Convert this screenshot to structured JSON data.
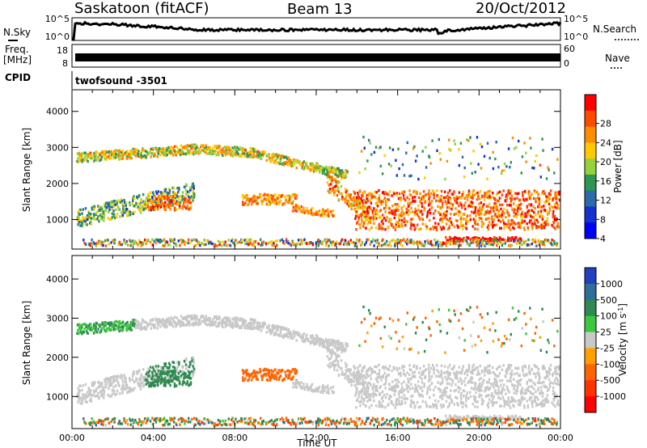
{
  "header": {
    "radar": "Saskatoon (fitACF)",
    "beam": "Beam 13",
    "date": "20/Oct/2012"
  },
  "top_panels": {
    "nsky_label": "N.Sky",
    "nsearch_label": "N.Search",
    "noise_ticks": [
      "10^5",
      "10^0"
    ],
    "freq_label_1": "Freq.",
    "freq_label_2": "[MHz]",
    "freq_ticks": [
      "18",
      "8"
    ],
    "nave_label": "Nave",
    "nave_ticks": [
      "60",
      "0"
    ],
    "cpid_label": "CPID",
    "cpid_value": "twofsound -3501"
  },
  "colorbars": {
    "power": {
      "title": "Power [dB]",
      "ticks": [
        "28",
        "24",
        "20",
        "16",
        "12",
        "8",
        "4"
      ],
      "colors": [
        "#ff0000",
        "#ff4a00",
        "#ff8c00",
        "#ffc800",
        "#94d23c",
        "#2d9650",
        "#2c6aa8",
        "#1432d2",
        "#0000ff"
      ]
    },
    "velocity": {
      "title": "Velocity [m s",
      "title_sup": "-1",
      "title_end": "]",
      "ticks": [
        "1000",
        "500",
        "100",
        "25",
        "-25",
        "-100",
        "-500",
        "-1000"
      ],
      "colors": [
        "#2040c0",
        "#2e6e98",
        "#2e8a50",
        "#3cc83c",
        "#c8c8c8",
        "#ffa000",
        "#ff6400",
        "#ff3200",
        "#ff0000"
      ]
    }
  },
  "chart_data": [
    {
      "type": "heatmap",
      "name": "power",
      "ylabel": "Slant Range [km]",
      "xlabel": "",
      "ylim": [
        180,
        4600
      ],
      "yticks": [
        "4000",
        "3000",
        "2000",
        "1000"
      ],
      "xticks": [
        "00:00",
        "04:00",
        "08:00",
        "12:00",
        "16:00",
        "20:00",
        "00:00"
      ],
      "xlim_hours": [
        0,
        24
      ],
      "clim_db": [
        0,
        30
      ]
    },
    {
      "type": "heatmap",
      "name": "velocity",
      "ylabel": "Slant Range [km]",
      "xlabel": "Time UT",
      "ylim": [
        180,
        4600
      ],
      "yticks": [
        "4000",
        "3000",
        "2000",
        "1000"
      ],
      "xticks": [
        "00:00",
        "04:00",
        "08:00",
        "12:00",
        "16:00",
        "20:00",
        "00:00"
      ],
      "xlim_hours": [
        0,
        24
      ],
      "clim_ms": [
        -1000,
        1000
      ]
    }
  ]
}
